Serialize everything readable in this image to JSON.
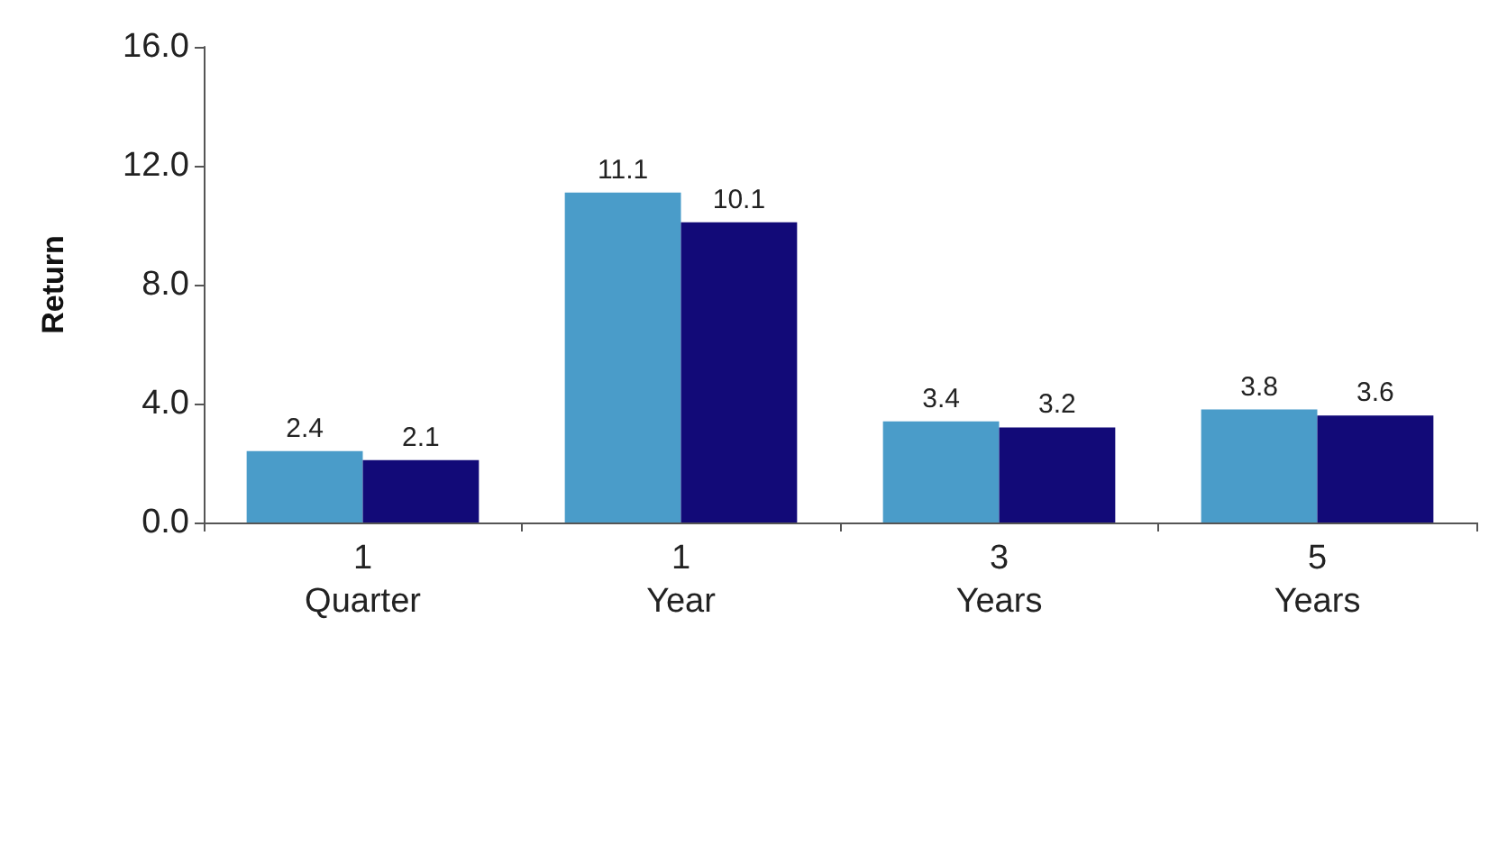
{
  "chart_data": {
    "type": "bar",
    "ylabel": "Return",
    "categories": [
      "1\nQuarter",
      "1\nYear",
      "3\nYears",
      "5\nYears"
    ],
    "series": [
      {
        "color": "#4a9cc9",
        "values": [
          2.4,
          11.1,
          3.4,
          3.8
        ]
      },
      {
        "color": "#120a78",
        "values": [
          2.1,
          10.1,
          3.2,
          3.6
        ]
      }
    ],
    "ylim": [
      0,
      16
    ],
    "yticks": [
      {
        "value": 0,
        "label": "0.0"
      },
      {
        "value": 4,
        "label": "4.0"
      },
      {
        "value": 8,
        "label": "8.0"
      },
      {
        "value": 12,
        "label": "12.0"
      },
      {
        "value": 16,
        "label": "16.0"
      }
    ],
    "grid": false,
    "data_labels": true
  }
}
